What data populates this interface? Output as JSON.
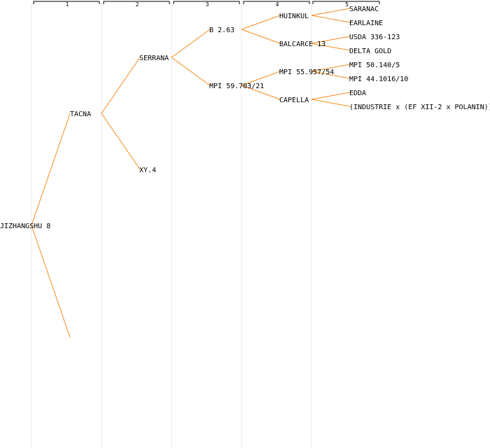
{
  "colors": {
    "edge": "#f28c1e",
    "column_line": "#e8e8e8",
    "text": "#000000",
    "background": "#ffffff"
  },
  "generations": [
    "1",
    "2",
    "3",
    "4",
    "5"
  ],
  "pedigree": {
    "name": "JIZHANGSHU 8",
    "parents": [
      {
        "name": "TACNA",
        "parents": [
          {
            "name": "SERRANA",
            "parents": [
              {
                "name": "B 2.63",
                "parents": [
                  {
                    "name": "HUINKUL",
                    "parents": [
                      {
                        "name": "SARANAC"
                      },
                      {
                        "name": "EARLAINE"
                      }
                    ]
                  },
                  {
                    "name": "BALCARCE 13",
                    "parents": [
                      {
                        "name": "USDA 336-123"
                      },
                      {
                        "name": "DELTA GOLD"
                      }
                    ]
                  }
                ]
              },
              {
                "name": "MPI 59.703/21",
                "parents": [
                  {
                    "name": "MPI 55.957/54",
                    "parents": [
                      {
                        "name": "MPI 50.140/5"
                      },
                      {
                        "name": "MPI 44.1016/10"
                      }
                    ]
                  },
                  {
                    "name": "CAPELLA",
                    "parents": [
                      {
                        "name": "EDDA"
                      },
                      {
                        "name": "(INDUSTRIE x (EF XII-2 x POLANIN))"
                      }
                    ]
                  }
                ]
              }
            ]
          },
          {
            "name": "XY.4"
          }
        ]
      },
      {
        "name": ""
      }
    ]
  }
}
